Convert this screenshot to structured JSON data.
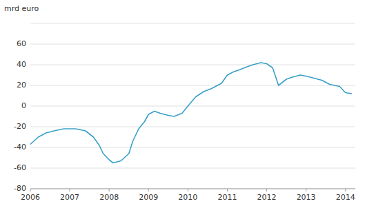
{
  "chart_data": {
    "type": "line",
    "y_label": "mrd euro",
    "x": [
      2006.0,
      2006.2,
      2006.4,
      2006.6,
      2006.85,
      2007.0,
      2007.15,
      2007.4,
      2007.6,
      2007.75,
      2007.85,
      2008.0,
      2008.1,
      2008.3,
      2008.5,
      2008.6,
      2008.75,
      2008.9,
      2009.0,
      2009.15,
      2009.3,
      2009.5,
      2009.65,
      2009.85,
      2010.0,
      2010.2,
      2010.4,
      2010.6,
      2010.85,
      2011.0,
      2011.15,
      2011.3,
      2011.5,
      2011.65,
      2011.85,
      2012.0,
      2012.15,
      2012.3,
      2012.5,
      2012.65,
      2012.85,
      2013.0,
      2013.2,
      2013.4,
      2013.6,
      2013.85,
      2014.0,
      2014.15
    ],
    "values": [
      -37,
      -30,
      -26,
      -24,
      -22,
      -22,
      -22,
      -24,
      -30,
      -38,
      -46,
      -52,
      -55,
      -53,
      -46,
      -34,
      -22,
      -15,
      -8,
      -5,
      -7,
      -9,
      -10,
      -7,
      0,
      9,
      14,
      17,
      22,
      30,
      33,
      35,
      38,
      40,
      42,
      41,
      37,
      20,
      26,
      28,
      30,
      29,
      27,
      25,
      21,
      19,
      13,
      12
    ],
    "color": "#3aa0c8",
    "xlim": [
      2006.0,
      2014.25
    ],
    "xticks": [
      2006,
      2007,
      2008,
      2009,
      2010,
      2011,
      2012,
      2013,
      2014
    ],
    "ylim": [
      -80,
      80
    ],
    "yticks": [
      -80,
      -60,
      -40,
      -20,
      0,
      20,
      40,
      60,
      {
        "value": 80,
        "label": null
      }
    ],
    "grid": true
  }
}
